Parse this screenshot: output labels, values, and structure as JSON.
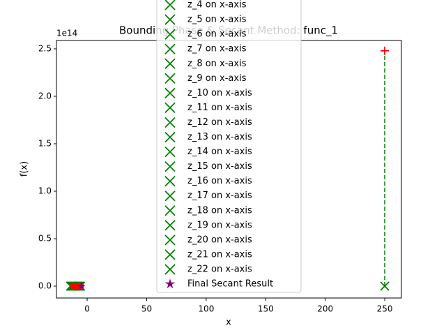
{
  "chart_data": {
    "type": "scatter",
    "title": "Bounding Phase & Secant Method: func_1",
    "x_label": "x",
    "y_label": "f(x)",
    "y_offset_label": "1e14",
    "xlim": [
      -25.8,
      264
    ],
    "ylim": [
      -0.125,
      2.588
    ],
    "xticks": [
      0,
      50,
      100,
      150,
      200,
      250
    ],
    "yticks": [
      {
        "value": 0,
        "label": "0.0"
      },
      0.5,
      {
        "value": 1,
        "label": "1.0"
      },
      1.5,
      {
        "value": 2,
        "label": "2.0"
      },
      2.5
    ],
    "lines": [
      {
        "color": "green",
        "style": "dashed",
        "x": [
          250,
          250
        ],
        "values": [
          0,
          2.48
        ]
      }
    ],
    "series": [
      {
        "name": "z_4 on x-axis",
        "color": "green",
        "marker": "x",
        "x": [
          -14
        ],
        "values": [
          0
        ]
      },
      {
        "name": "z_5 on x-axis",
        "color": "green",
        "marker": "x",
        "x": [
          -13.5
        ],
        "values": [
          0
        ]
      },
      {
        "name": "z_6 on x-axis",
        "color": "green",
        "marker": "x",
        "x": [
          -13
        ],
        "values": [
          0
        ]
      },
      {
        "name": "z_7 on x-axis",
        "color": "green",
        "marker": "x",
        "x": [
          -12.5
        ],
        "values": [
          0
        ]
      },
      {
        "name": "z_8 on x-axis",
        "color": "green",
        "marker": "x",
        "x": [
          -12
        ],
        "values": [
          0
        ]
      },
      {
        "name": "z_9 on x-axis",
        "color": "green",
        "marker": "x",
        "x": [
          -11.5
        ],
        "values": [
          0
        ]
      },
      {
        "name": "z_10 on x-axis",
        "color": "green",
        "marker": "x",
        "x": [
          -11
        ],
        "values": [
          0
        ]
      },
      {
        "name": "z_11 on x-axis",
        "color": "green",
        "marker": "x",
        "x": [
          -10.5
        ],
        "values": [
          0
        ]
      },
      {
        "name": "z_12 on x-axis",
        "color": "green",
        "marker": "x",
        "x": [
          -10
        ],
        "values": [
          0
        ]
      },
      {
        "name": "z_13 on x-axis",
        "color": "green",
        "marker": "x",
        "x": [
          -9.5
        ],
        "values": [
          0
        ]
      },
      {
        "name": "z_14 on x-axis",
        "color": "green",
        "marker": "x",
        "x": [
          -9
        ],
        "values": [
          0
        ]
      },
      {
        "name": "z_15 on x-axis",
        "color": "green",
        "marker": "x",
        "x": [
          -8.5
        ],
        "values": [
          0
        ]
      },
      {
        "name": "z_16 on x-axis",
        "color": "green",
        "marker": "x",
        "x": [
          -8
        ],
        "values": [
          0
        ]
      },
      {
        "name": "z_17 on x-axis",
        "color": "green",
        "marker": "x",
        "x": [
          -7.5
        ],
        "values": [
          0
        ]
      },
      {
        "name": "z_18 on x-axis",
        "color": "green",
        "marker": "x",
        "x": [
          -7
        ],
        "values": [
          0
        ]
      },
      {
        "name": "z_19 on x-axis",
        "color": "green",
        "marker": "x",
        "x": [
          -6.5
        ],
        "values": [
          0
        ]
      },
      {
        "name": "z_20 on x-axis",
        "color": "green",
        "marker": "x",
        "x": [
          -6
        ],
        "values": [
          0
        ]
      },
      {
        "name": "z_21 on x-axis",
        "color": "green",
        "marker": "x",
        "x": [
          -5.5
        ],
        "values": [
          0
        ]
      },
      {
        "name": "z_22 on x-axis",
        "color": "green",
        "marker": "x",
        "x": [
          250
        ],
        "values": [
          0
        ]
      },
      {
        "color": "red",
        "marker": "o",
        "x": [
          -12,
          -10,
          -8,
          -6,
          -5
        ],
        "values": [
          0,
          0,
          0,
          0,
          0
        ]
      },
      {
        "color": "red",
        "marker": "+",
        "x": [
          250
        ],
        "values": [
          2.48
        ]
      },
      {
        "name": "Final Secant Result",
        "color": "purple",
        "marker": "*",
        "x": [
          -5
        ],
        "values": [
          0
        ]
      }
    ]
  }
}
